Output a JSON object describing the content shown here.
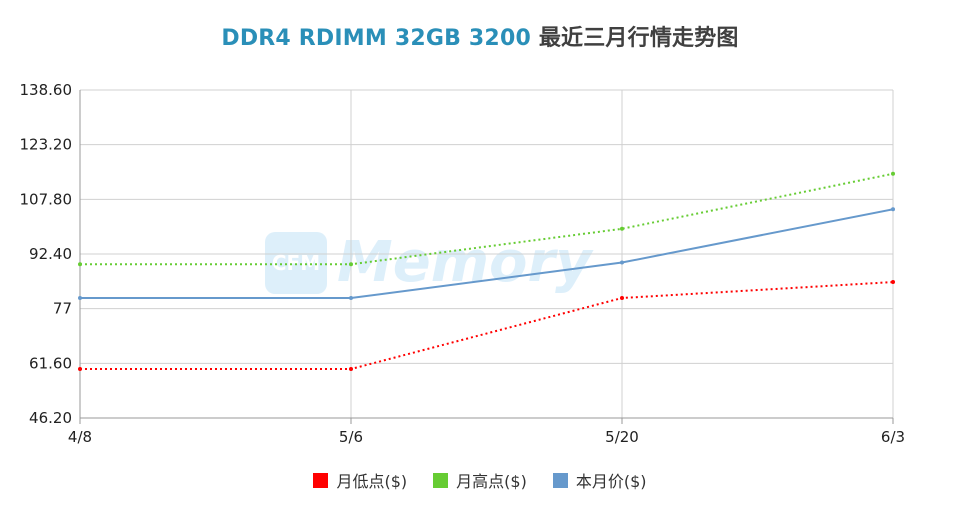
{
  "title": {
    "model": "DDR4 RDIMM 32GB 3200",
    "suffix": "最近三月行情走势图"
  },
  "watermark": {
    "badge": "CFM",
    "text": "Memory"
  },
  "chart_data": {
    "type": "line",
    "categories": [
      "4/8",
      "5/6",
      "5/20",
      "6/3"
    ],
    "ylim": [
      46.2,
      138.6
    ],
    "yticks": [
      "46.20",
      "61.60",
      "77",
      "92.40",
      "107.80",
      "123.20",
      "138.60"
    ],
    "grid": true,
    "legend_position": "bottom",
    "series": [
      {
        "name": "月低点($)",
        "color": "#ff0000",
        "dashed": true,
        "values": [
          60,
          60,
          80,
          84.5
        ]
      },
      {
        "name": "月高点($)",
        "color": "#66cc33",
        "dashed": true,
        "values": [
          89.5,
          89.5,
          99.5,
          115
        ]
      },
      {
        "name": "本月价($)",
        "color": "#6699cc",
        "dashed": false,
        "values": [
          80,
          80,
          90,
          105
        ]
      }
    ]
  }
}
